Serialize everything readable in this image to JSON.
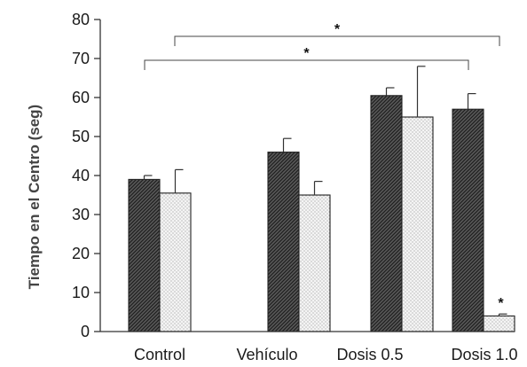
{
  "chart_data": {
    "type": "bar",
    "title": "",
    "xlabel": "",
    "ylabel": "Tiempo en el Centro (seg)",
    "ylim": [
      0,
      80
    ],
    "yticks": [
      0,
      10,
      20,
      30,
      40,
      50,
      60,
      70,
      80
    ],
    "grid": false,
    "categories": [
      "Control",
      "Vehículo",
      "Dosis 0.5",
      "Dosis 1.0"
    ],
    "series": [
      {
        "pattern": "diagonal-hatch",
        "color": "#4a4a4a",
        "values": [
          39,
          46,
          60.5,
          57
        ],
        "errors": [
          1,
          3.5,
          2,
          4
        ]
      },
      {
        "pattern": "dotted",
        "color": "#f2f2f2",
        "values": [
          35.5,
          35,
          55,
          4
        ],
        "errors": [
          6,
          3.5,
          13,
          0.5
        ]
      }
    ],
    "annotations": [
      {
        "text": "*",
        "type": "bracket",
        "from_category": 1,
        "to_category": 3
      },
      {
        "text": "*",
        "type": "bracket",
        "from_category": 0,
        "to_category": 3
      },
      {
        "text": "*",
        "type": "bar-mark",
        "category": 3,
        "series": 1
      }
    ]
  }
}
